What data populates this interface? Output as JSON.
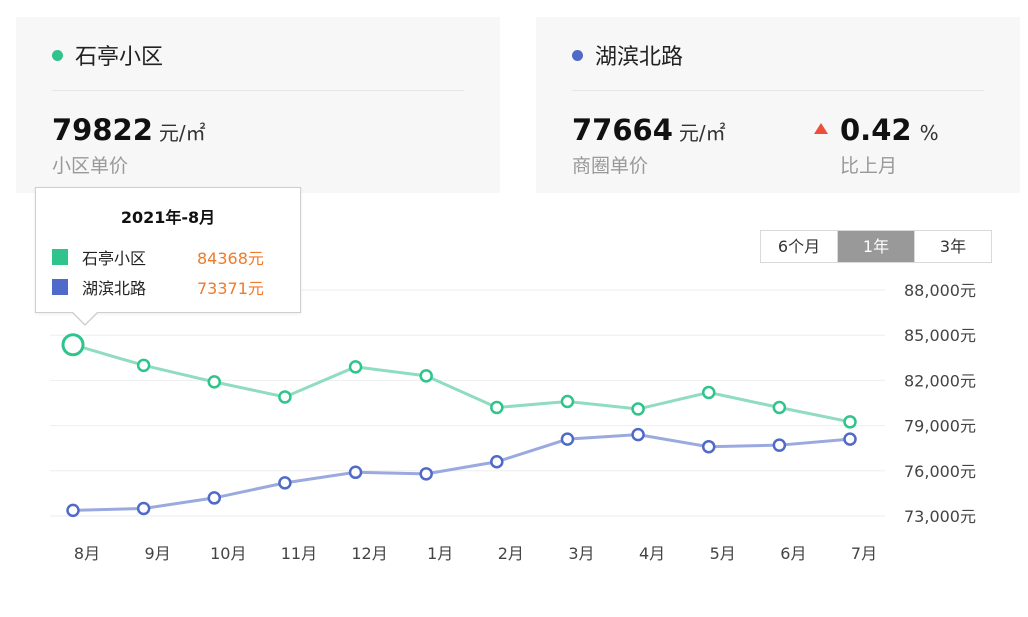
{
  "cards": [
    {
      "name": "石亭小区",
      "price": "79822",
      "unit": "元/㎡",
      "label": "小区单价",
      "dot_color": "#2ec48c"
    },
    {
      "name": "湖滨北路",
      "price": "77664",
      "unit": "元/㎡",
      "label": "商圈单价",
      "dot_color": "#4f6ac8",
      "change": {
        "value": "0.42",
        "unit": "%",
        "label": "比上月",
        "direction": "up",
        "color": "#f04e3c"
      }
    }
  ],
  "range_tabs": [
    {
      "label": "6个月",
      "active": false
    },
    {
      "label": "1年",
      "active": true
    },
    {
      "label": "3年",
      "active": false
    }
  ],
  "tooltip": {
    "title": "2021年-8月",
    "rows": [
      {
        "name": "石亭小区",
        "value": "84368元",
        "color": "#2ec48c"
      },
      {
        "name": "湖滨北路",
        "value": "73371元",
        "color": "#4f6ac8"
      }
    ]
  },
  "chart_data": {
    "type": "line",
    "categories": [
      "8月",
      "9月",
      "10月",
      "11月",
      "12月",
      "1月",
      "2月",
      "3月",
      "4月",
      "5月",
      "6月",
      "7月"
    ],
    "series": [
      {
        "name": "石亭小区",
        "color": "#2ec48c",
        "line_color": "#8fdcc0",
        "values": [
          84368,
          83000,
          81900,
          80900,
          82900,
          82300,
          80200,
          80600,
          80100,
          81200,
          80200,
          79250
        ]
      },
      {
        "name": "湖滨北路",
        "color": "#4f6ac8",
        "line_color": "#9aaadf",
        "values": [
          73371,
          73500,
          74200,
          75200,
          75900,
          75800,
          76600,
          78100,
          78400,
          77600,
          77700,
          78100
        ]
      }
    ],
    "y_ticks": [
      73000,
      76000,
      79000,
      82000,
      85000,
      88000
    ],
    "y_tick_labels": [
      "73,000元",
      "76,000元",
      "79,000元",
      "82,000元",
      "85,000元",
      "88,000元"
    ],
    "ylim": [
      72300,
      88000
    ],
    "grid": true,
    "highlight_index": 0
  }
}
